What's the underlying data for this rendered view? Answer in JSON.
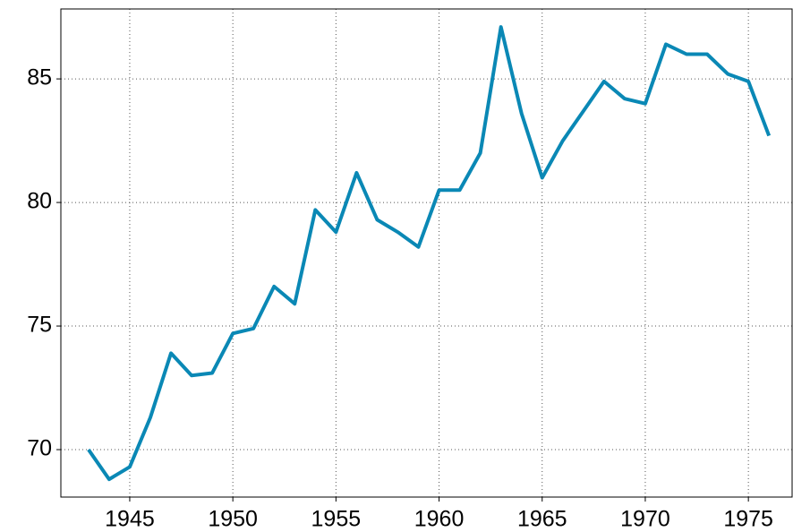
{
  "chart_data": {
    "type": "line",
    "x": [
      1943,
      1944,
      1945,
      1946,
      1947,
      1948,
      1949,
      1950,
      1951,
      1952,
      1953,
      1954,
      1955,
      1956,
      1957,
      1958,
      1959,
      1960,
      1961,
      1962,
      1963,
      1964,
      1965,
      1966,
      1967,
      1968,
      1969,
      1970,
      1971,
      1972,
      1973,
      1974,
      1975,
      1976
    ],
    "series": [
      {
        "color": "#0a88b5",
        "values": [
          70.0,
          68.8,
          69.3,
          71.3,
          73.9,
          73.0,
          73.1,
          74.7,
          74.9,
          76.6,
          75.9,
          79.7,
          78.8,
          81.2,
          79.3,
          78.8,
          78.2,
          80.5,
          80.5,
          82.0,
          87.1,
          83.6,
          81.0,
          82.5,
          83.7,
          84.9,
          84.2,
          84.0,
          86.4,
          86.0,
          86.0,
          85.2,
          84.9,
          82.7
        ]
      }
    ],
    "xlim": [
      1941.66,
      1977.12
    ],
    "xticks": [
      1945,
      1950,
      1955,
      1960,
      1965,
      1970,
      1975
    ],
    "ylim": [
      68.08,
      87.83
    ],
    "yticks": [
      70,
      75,
      80,
      85
    ],
    "grid": true
  }
}
